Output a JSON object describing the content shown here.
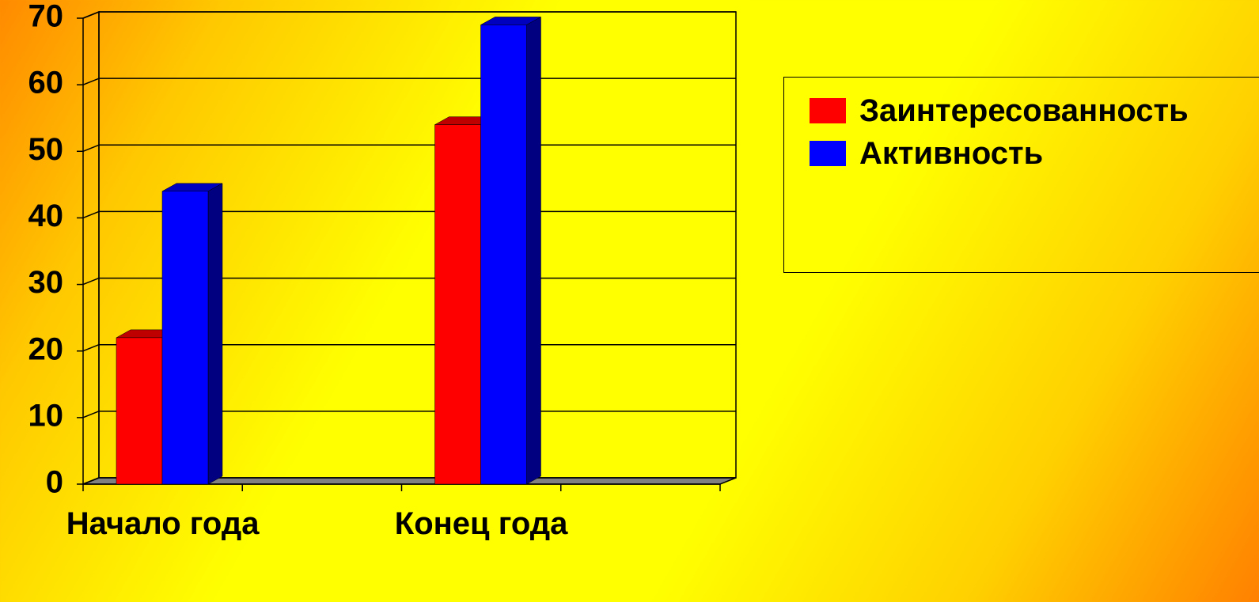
{
  "chart_data": {
    "type": "bar3d",
    "categories": [
      "Начало года",
      null,
      "Конец года",
      null
    ],
    "series": [
      {
        "name": "Заинтересованность",
        "color": "#ff0000",
        "values": [
          22,
          null,
          54,
          null
        ]
      },
      {
        "name": "Активность",
        "color": "#0000ff",
        "values": [
          44,
          null,
          69,
          null
        ]
      }
    ],
    "ylim": [
      0,
      70
    ],
    "yticks": [
      0,
      10,
      20,
      30,
      40,
      50,
      60,
      70
    ],
    "grid": true,
    "legend": "right"
  }
}
